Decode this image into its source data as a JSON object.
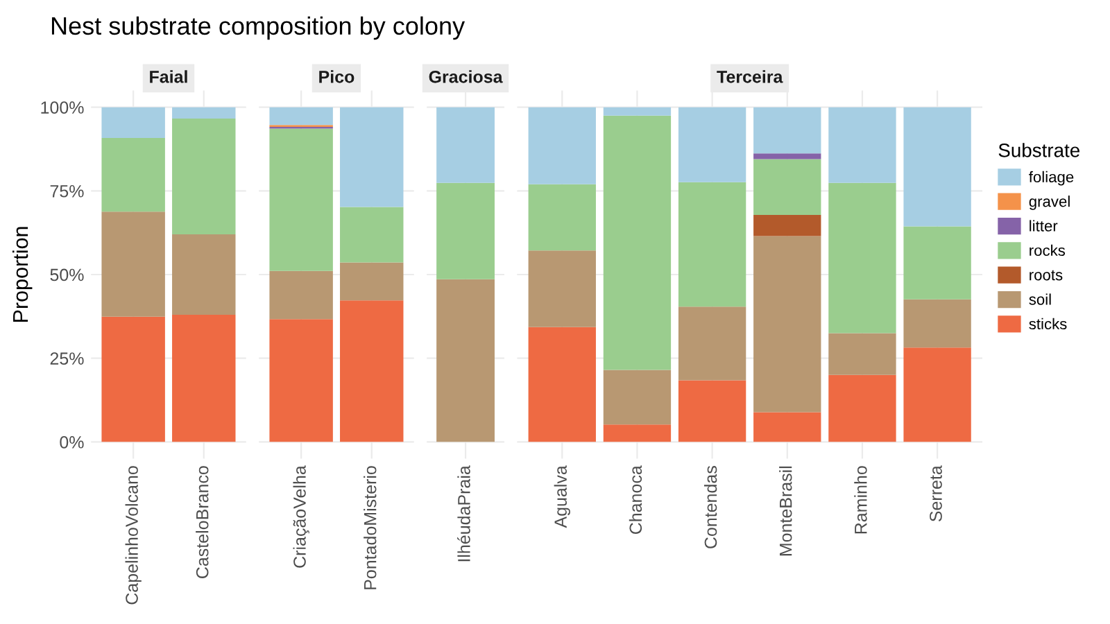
{
  "chart_data": [
    {
      "type": "bar",
      "stacked": true,
      "title": "Nest substrate composition by colony",
      "subtitle": "Faial",
      "ylabel": "Proportion",
      "categories": [
        "CapelinhoVolcano",
        "CasteloBranco"
      ],
      "ylim": [
        -5,
        105
      ],
      "yticks": [
        {
          "value": 0,
          "label": "0%"
        },
        {
          "value": 25,
          "label": "25%"
        },
        {
          "value": 50,
          "label": "50%"
        },
        {
          "value": 75,
          "label": "75%"
        },
        {
          "value": 100,
          "label": "100%"
        }
      ],
      "grid": true,
      "series": [
        {
          "color": "#ee6a43",
          "values": [
            37.4,
            38.0
          ]
        },
        {
          "color": "#b89872",
          "values": [
            31.4,
            24.0
          ]
        },
        {
          "color": "#b35a2b",
          "values": [
            0,
            0
          ]
        },
        {
          "color": "#9acd8e",
          "values": [
            22.0,
            34.6
          ]
        },
        {
          "color": "#8563a8",
          "values": [
            0,
            0
          ]
        },
        {
          "color": "#f4924a",
          "values": [
            0,
            0
          ]
        },
        {
          "color": "#a6cee3",
          "values": [
            9.2,
            3.4
          ]
        }
      ]
    },
    {
      "type": "bar",
      "stacked": true,
      "subtitle": "Pico",
      "categories": [
        "CriaçãoVelha",
        "PontadoMisterio"
      ],
      "ylim": [
        -5,
        105
      ],
      "tick_labels": "x",
      "grid": true,
      "series": [
        {
          "color": "#ee6a43",
          "values": [
            36.7,
            42.3
          ]
        },
        {
          "color": "#b89872",
          "values": [
            14.4,
            11.3
          ]
        },
        {
          "color": "#b35a2b",
          "values": [
            0,
            0
          ]
        },
        {
          "color": "#9acd8e",
          "values": [
            42.5,
            16.6
          ]
        },
        {
          "color": "#8563a8",
          "values": [
            0.5,
            0
          ]
        },
        {
          "color": "#f4924a",
          "values": [
            0.6,
            0
          ]
        },
        {
          "color": "#a6cee3",
          "values": [
            5.3,
            29.8
          ]
        }
      ]
    },
    {
      "type": "bar",
      "stacked": true,
      "subtitle": "Graciosa",
      "categories": [
        "IlhéudaPraia"
      ],
      "ylim": [
        -5,
        105
      ],
      "tick_labels": "x",
      "grid": true,
      "series": [
        {
          "color": "#ee6a43",
          "values": [
            0
          ]
        },
        {
          "color": "#b89872",
          "values": [
            48.6
          ]
        },
        {
          "color": "#b35a2b",
          "values": [
            0
          ]
        },
        {
          "color": "#9acd8e",
          "values": [
            28.8
          ]
        },
        {
          "color": "#8563a8",
          "values": [
            0
          ]
        },
        {
          "color": "#f4924a",
          "values": [
            0
          ]
        },
        {
          "color": "#a6cee3",
          "values": [
            22.6
          ]
        }
      ]
    },
    {
      "type": "bar",
      "stacked": true,
      "subtitle": "Terceira",
      "categories": [
        "Agualva",
        "Chanoca",
        "Contendas",
        "MonteBrasil",
        "Raminho",
        "Serreta"
      ],
      "ylim": [
        -5,
        105
      ],
      "tick_labels": "x",
      "grid": true,
      "legend": "right",
      "legend_title": "Substrate",
      "series": [
        {
          "name": "sticks",
          "color": "#ee6a43",
          "values": [
            34.3,
            5.2,
            18.4,
            8.9,
            20.0,
            28.2
          ]
        },
        {
          "name": "soil",
          "color": "#b89872",
          "values": [
            22.9,
            16.3,
            22.0,
            52.6,
            12.5,
            14.4
          ]
        },
        {
          "name": "roots",
          "color": "#b35a2b",
          "values": [
            0,
            0,
            0,
            6.3,
            0,
            0
          ]
        },
        {
          "name": "rocks",
          "color": "#9acd8e",
          "values": [
            19.8,
            76.0,
            37.2,
            16.7,
            44.9,
            21.8
          ]
        },
        {
          "name": "litter",
          "color": "#8563a8",
          "values": [
            0,
            0,
            0,
            1.7,
            0,
            0
          ]
        },
        {
          "name": "gravel",
          "color": "#f4924a",
          "values": [
            0,
            0,
            0,
            0,
            0,
            0
          ]
        },
        {
          "name": "foliage",
          "color": "#a6cee3",
          "values": [
            23.0,
            2.5,
            22.4,
            13.8,
            22.6,
            35.6
          ]
        }
      ]
    }
  ]
}
